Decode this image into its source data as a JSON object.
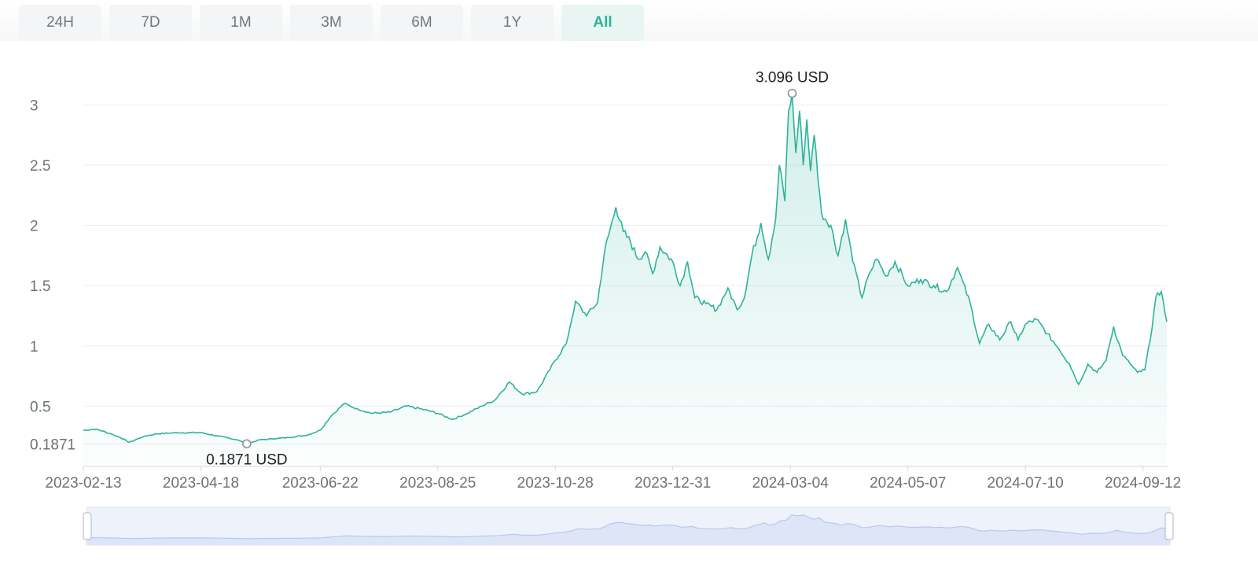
{
  "range_tabs": {
    "items": [
      {
        "label": "24H",
        "active": false
      },
      {
        "label": "7D",
        "active": false
      },
      {
        "label": "1M",
        "active": false
      },
      {
        "label": "3M",
        "active": false
      },
      {
        "label": "6M",
        "active": false
      },
      {
        "label": "1Y",
        "active": false
      },
      {
        "label": "All",
        "active": true
      }
    ]
  },
  "colors": {
    "line": "#2db39a",
    "tab_active": "#2db39a",
    "navigator": "#b9c8ee"
  },
  "chart_data": {
    "type": "area",
    "title": "",
    "xlabel": "",
    "ylabel": "",
    "x_range": [
      "2023-02-13",
      "2024-09-25"
    ],
    "ylim": [
      0,
      3.1
    ],
    "y_ticks": [
      {
        "value": 0.1871,
        "label": "0.1871"
      },
      {
        "value": 0.5,
        "label": "0.5"
      },
      {
        "value": 1,
        "label": "1"
      },
      {
        "value": 1.5,
        "label": "1.5"
      },
      {
        "value": 2,
        "label": "2"
      },
      {
        "value": 2.5,
        "label": "2.5"
      },
      {
        "value": 3,
        "label": "3"
      }
    ],
    "x_ticks": [
      "2023-02-13",
      "2023-04-18",
      "2023-06-22",
      "2023-08-25",
      "2023-10-28",
      "2023-12-31",
      "2024-03-04",
      "2024-05-07",
      "2024-07-10",
      "2024-09-12"
    ],
    "grid": true,
    "annotations": [
      {
        "label": "3.096 USD",
        "x": "2024-03-05",
        "y": 3.096,
        "type": "max"
      },
      {
        "label": "0.1871 USD",
        "x": "2023-05-13",
        "y": 0.1871,
        "type": "min"
      }
    ],
    "series": [
      {
        "points": [
          [
            "2023-02-13",
            0.3
          ],
          [
            "2023-02-20",
            0.31
          ],
          [
            "2023-02-28",
            0.27
          ],
          [
            "2023-03-05",
            0.24
          ],
          [
            "2023-03-10",
            0.2
          ],
          [
            "2023-03-18",
            0.25
          ],
          [
            "2023-03-25",
            0.27
          ],
          [
            "2023-04-05",
            0.28
          ],
          [
            "2023-04-18",
            0.28
          ],
          [
            "2023-04-28",
            0.25
          ],
          [
            "2023-05-08",
            0.22
          ],
          [
            "2023-05-13",
            0.1871
          ],
          [
            "2023-05-20",
            0.22
          ],
          [
            "2023-05-28",
            0.23
          ],
          [
            "2023-06-05",
            0.24
          ],
          [
            "2023-06-15",
            0.26
          ],
          [
            "2023-06-22",
            0.3
          ],
          [
            "2023-06-28",
            0.42
          ],
          [
            "2023-07-05",
            0.52
          ],
          [
            "2023-07-12",
            0.48
          ],
          [
            "2023-07-20",
            0.44
          ],
          [
            "2023-07-30",
            0.45
          ],
          [
            "2023-08-08",
            0.5
          ],
          [
            "2023-08-18",
            0.47
          ],
          [
            "2023-08-25",
            0.44
          ],
          [
            "2023-09-02",
            0.39
          ],
          [
            "2023-09-10",
            0.44
          ],
          [
            "2023-09-18",
            0.5
          ],
          [
            "2023-09-25",
            0.55
          ],
          [
            "2023-10-03",
            0.7
          ],
          [
            "2023-10-10",
            0.6
          ],
          [
            "2023-10-18",
            0.62
          ],
          [
            "2023-10-25",
            0.8
          ],
          [
            "2023-10-28",
            0.88
          ],
          [
            "2023-11-03",
            1.02
          ],
          [
            "2023-11-08",
            1.37
          ],
          [
            "2023-11-14",
            1.25
          ],
          [
            "2023-11-20",
            1.36
          ],
          [
            "2023-11-24",
            1.8
          ],
          [
            "2023-11-30",
            2.15
          ],
          [
            "2023-12-04",
            1.95
          ],
          [
            "2023-12-08",
            1.86
          ],
          [
            "2023-12-12",
            1.72
          ],
          [
            "2023-12-16",
            1.78
          ],
          [
            "2023-12-20",
            1.6
          ],
          [
            "2023-12-24",
            1.82
          ],
          [
            "2023-12-31",
            1.7
          ],
          [
            "2024-01-04",
            1.5
          ],
          [
            "2024-01-08",
            1.7
          ],
          [
            "2024-01-12",
            1.4
          ],
          [
            "2024-01-18",
            1.35
          ],
          [
            "2024-01-24",
            1.3
          ],
          [
            "2024-01-30",
            1.48
          ],
          [
            "2024-02-04",
            1.3
          ],
          [
            "2024-02-08",
            1.4
          ],
          [
            "2024-02-12",
            1.75
          ],
          [
            "2024-02-17",
            2.02
          ],
          [
            "2024-02-21",
            1.72
          ],
          [
            "2024-02-25",
            2.05
          ],
          [
            "2024-02-27",
            2.5
          ],
          [
            "2024-03-01",
            2.2
          ],
          [
            "2024-03-03",
            2.95
          ],
          [
            "2024-03-05",
            3.096
          ],
          [
            "2024-03-07",
            2.6
          ],
          [
            "2024-03-09",
            2.95
          ],
          [
            "2024-03-11",
            2.5
          ],
          [
            "2024-03-13",
            2.88
          ],
          [
            "2024-03-15",
            2.45
          ],
          [
            "2024-03-17",
            2.75
          ],
          [
            "2024-03-21",
            2.1
          ],
          [
            "2024-03-26",
            2.0
          ],
          [
            "2024-03-30",
            1.75
          ],
          [
            "2024-04-03",
            2.05
          ],
          [
            "2024-04-07",
            1.7
          ],
          [
            "2024-04-12",
            1.4
          ],
          [
            "2024-04-16",
            1.6
          ],
          [
            "2024-04-20",
            1.72
          ],
          [
            "2024-04-25",
            1.58
          ],
          [
            "2024-04-30",
            1.7
          ],
          [
            "2024-05-07",
            1.5
          ],
          [
            "2024-05-14",
            1.55
          ],
          [
            "2024-05-21",
            1.5
          ],
          [
            "2024-05-28",
            1.45
          ],
          [
            "2024-06-03",
            1.65
          ],
          [
            "2024-06-10",
            1.35
          ],
          [
            "2024-06-15",
            1.02
          ],
          [
            "2024-06-20",
            1.18
          ],
          [
            "2024-06-26",
            1.05
          ],
          [
            "2024-07-02",
            1.2
          ],
          [
            "2024-07-06",
            1.05
          ],
          [
            "2024-07-10",
            1.18
          ],
          [
            "2024-07-16",
            1.22
          ],
          [
            "2024-07-22",
            1.1
          ],
          [
            "2024-07-28",
            0.98
          ],
          [
            "2024-08-03",
            0.85
          ],
          [
            "2024-08-08",
            0.68
          ],
          [
            "2024-08-13",
            0.85
          ],
          [
            "2024-08-18",
            0.78
          ],
          [
            "2024-08-23",
            0.88
          ],
          [
            "2024-08-27",
            1.16
          ],
          [
            "2024-09-01",
            0.92
          ],
          [
            "2024-09-05",
            0.85
          ],
          [
            "2024-09-09",
            0.78
          ],
          [
            "2024-09-13",
            0.8
          ],
          [
            "2024-09-16",
            1.05
          ],
          [
            "2024-09-19",
            1.4
          ],
          [
            "2024-09-22",
            1.45
          ],
          [
            "2024-09-25",
            1.2
          ]
        ]
      }
    ]
  }
}
